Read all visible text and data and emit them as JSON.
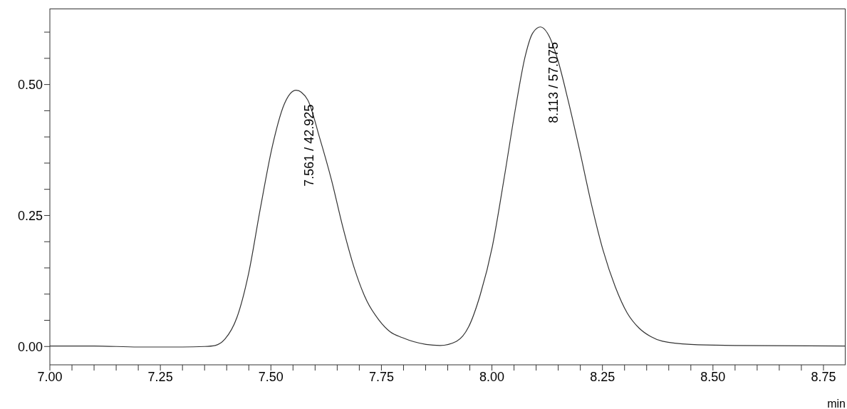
{
  "chart_data": {
    "type": "line",
    "xlabel": "min",
    "series": [
      {
        "color": "#333333",
        "x": [
          7.0,
          7.1,
          7.2,
          7.3,
          7.35,
          7.374,
          7.396,
          7.423,
          7.45,
          7.476,
          7.503,
          7.53,
          7.557,
          7.583,
          7.61,
          7.637,
          7.663,
          7.69,
          7.717,
          7.744,
          7.77,
          7.797,
          7.851,
          7.883,
          7.92,
          7.947,
          7.974,
          8.001,
          8.027,
          8.054,
          8.075,
          8.092,
          8.11,
          8.129,
          8.15,
          8.172,
          8.199,
          8.225,
          8.252,
          8.279,
          8.306,
          8.333,
          8.359,
          8.386,
          8.45,
          8.55,
          8.8
        ],
        "values": [
          0.001,
          0.001,
          -0.001,
          -0.001,
          0.0,
          0.002,
          0.014,
          0.055,
          0.141,
          0.263,
          0.381,
          0.462,
          0.489,
          0.471,
          0.399,
          0.318,
          0.227,
          0.146,
          0.087,
          0.051,
          0.028,
          0.017,
          0.004,
          0.002,
          0.01,
          0.037,
          0.1,
          0.191,
          0.318,
          0.458,
          0.553,
          0.598,
          0.61,
          0.593,
          0.544,
          0.471,
          0.372,
          0.272,
          0.182,
          0.114,
          0.064,
          0.035,
          0.019,
          0.01,
          0.004,
          0.002,
          0.001
        ]
      }
    ],
    "annotations": [
      {
        "text": "7.561 / 42.925",
        "x": 7.561,
        "y": 0.489
      },
      {
        "text": "8.113 / 57.075",
        "x": 8.113,
        "y": 0.61
      }
    ],
    "xlim": [
      7.0,
      8.8
    ],
    "xticks": [
      {
        "value": 7.0,
        "label": "7.00"
      },
      {
        "value": 7.05,
        "label": null
      },
      {
        "value": 7.1,
        "label": null
      },
      {
        "value": 7.15,
        "label": null
      },
      {
        "value": 7.2,
        "label": null
      },
      {
        "value": 7.25,
        "label": "7.25"
      },
      {
        "value": 7.3,
        "label": null
      },
      {
        "value": 7.35,
        "label": null
      },
      {
        "value": 7.4,
        "label": null
      },
      {
        "value": 7.45,
        "label": null
      },
      {
        "value": 7.5,
        "label": "7.50"
      },
      {
        "value": 7.55,
        "label": null
      },
      {
        "value": 7.6,
        "label": null
      },
      {
        "value": 7.65,
        "label": null
      },
      {
        "value": 7.7,
        "label": null
      },
      {
        "value": 7.75,
        "label": "7.75"
      },
      {
        "value": 7.8,
        "label": null
      },
      {
        "value": 7.85,
        "label": null
      },
      {
        "value": 7.9,
        "label": null
      },
      {
        "value": 7.95,
        "label": null
      },
      {
        "value": 8.0,
        "label": "8.00"
      },
      {
        "value": 8.05,
        "label": null
      },
      {
        "value": 8.1,
        "label": null
      },
      {
        "value": 8.15,
        "label": null
      },
      {
        "value": 8.2,
        "label": null
      },
      {
        "value": 8.25,
        "label": "8.25"
      },
      {
        "value": 8.3,
        "label": null
      },
      {
        "value": 8.35,
        "label": null
      },
      {
        "value": 8.4,
        "label": null
      },
      {
        "value": 8.45,
        "label": null
      },
      {
        "value": 8.5,
        "label": "8.50"
      },
      {
        "value": 8.55,
        "label": null
      },
      {
        "value": 8.6,
        "label": null
      },
      {
        "value": 8.65,
        "label": null
      },
      {
        "value": 8.7,
        "label": null
      },
      {
        "value": 8.75,
        "label": "8.75"
      }
    ],
    "ylim": [
      -0.035,
      0.645
    ],
    "yticks": [
      {
        "value": 0.0,
        "label": "0.00"
      },
      {
        "value": 0.05,
        "label": null
      },
      {
        "value": 0.1,
        "label": null
      },
      {
        "value": 0.15,
        "label": null
      },
      {
        "value": 0.2,
        "label": null
      },
      {
        "value": 0.25,
        "label": "0.25"
      },
      {
        "value": 0.3,
        "label": null
      },
      {
        "value": 0.35,
        "label": null
      },
      {
        "value": 0.4,
        "label": null
      },
      {
        "value": 0.45,
        "label": null
      },
      {
        "value": 0.5,
        "label": "0.50"
      },
      {
        "value": 0.55,
        "label": null
      },
      {
        "value": 0.6,
        "label": null
      }
    ],
    "grid": false,
    "legend": false,
    "marker": "none",
    "line_style": "solid"
  }
}
